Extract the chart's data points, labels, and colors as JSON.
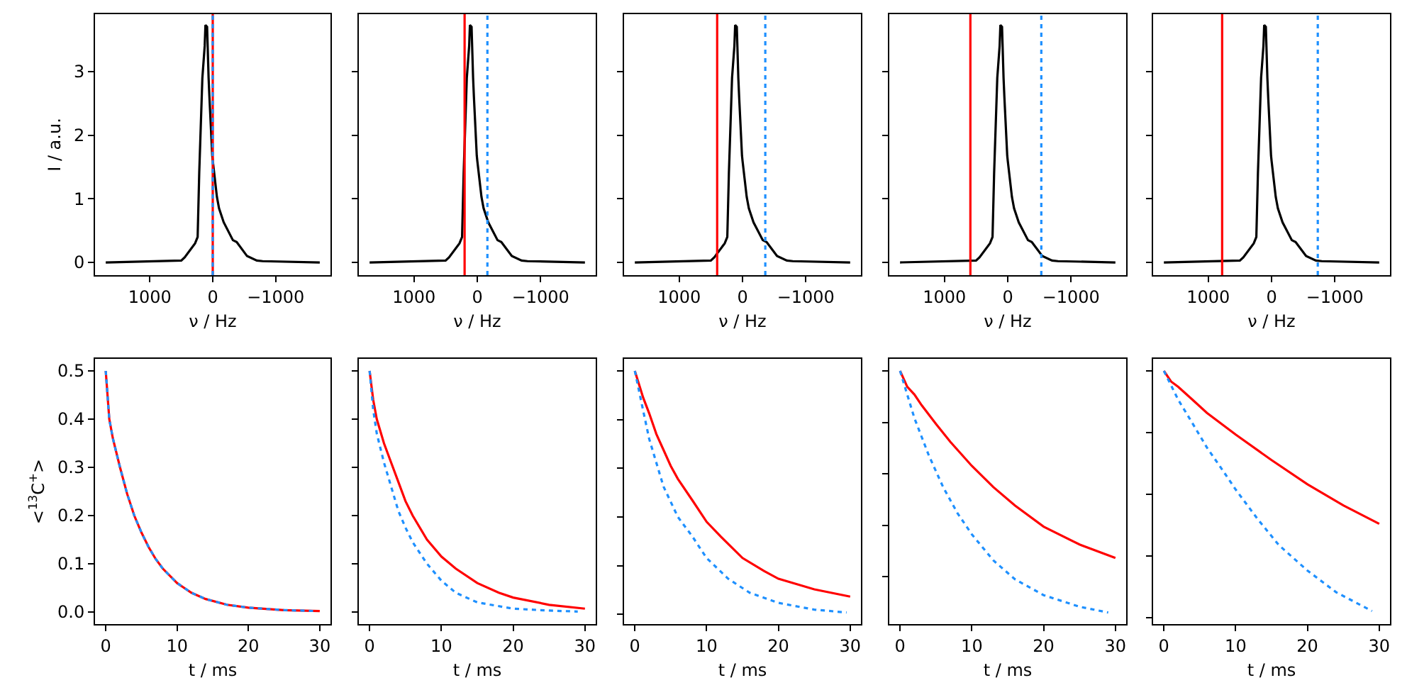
{
  "chart_data": [
    {
      "type": "line",
      "ylabel": "I / a.u.",
      "xlabel": "ν / Hz",
      "xlim": [
        1870,
        -1870
      ],
      "xticks": [
        1000,
        0,
        -1000
      ],
      "ylim": [
        -0.2,
        3.9
      ],
      "yticks": [
        0,
        1,
        2,
        3
      ],
      "series": [
        {
          "color": "#000000",
          "x": [
            1700,
            500,
            446,
            281,
            240,
            215,
            165,
            128,
            116,
            90,
            66,
            53,
            8,
            0,
            -66,
            -100,
            -174,
            -320,
            -380,
            -545,
            -700,
            -793,
            -1700
          ],
          "values": [
            0,
            0.03,
            0.08,
            0.3,
            0.4,
            1.4,
            2.9,
            3.4,
            3.73,
            3.7,
            2.9,
            2.6,
            1.68,
            1.6,
            1.03,
            0.85,
            0.63,
            0.35,
            0.32,
            0.1,
            0.03,
            0.02,
            0
          ]
        }
      ],
      "ref_lines": [
        {
          "axis": "x",
          "value": 0,
          "color": "#ff0000",
          "line_style": "solid"
        },
        {
          "axis": "x",
          "value": 0,
          "color": "#1e90ff",
          "line_style": "dotted"
        }
      ]
    },
    {
      "type": "line",
      "xlabel": "ν / Hz",
      "xlim": [
        1870,
        -1870
      ],
      "xticks": [
        1000,
        0,
        -1000
      ],
      "ylim": [
        -0.2,
        3.9
      ],
      "yticks": [
        0,
        1,
        2,
        3
      ],
      "tick_labels": "x",
      "series": [
        {
          "color": "#000000",
          "x": [
            1700,
            500,
            446,
            281,
            240,
            215,
            165,
            128,
            116,
            90,
            66,
            53,
            8,
            0,
            -66,
            -100,
            -174,
            -320,
            -380,
            -545,
            -700,
            -793,
            -1700
          ],
          "values": [
            0,
            0.03,
            0.08,
            0.3,
            0.4,
            1.4,
            2.9,
            3.4,
            3.73,
            3.7,
            2.9,
            2.6,
            1.68,
            1.6,
            1.03,
            0.85,
            0.63,
            0.35,
            0.32,
            0.1,
            0.03,
            0.02,
            0
          ]
        }
      ],
      "ref_lines": [
        {
          "axis": "x",
          "value": 200,
          "color": "#ff0000",
          "line_style": "solid"
        },
        {
          "axis": "x",
          "value": -160,
          "color": "#1e90ff",
          "line_style": "dotted"
        }
      ]
    },
    {
      "type": "line",
      "xlabel": "ν / Hz",
      "xlim": [
        1870,
        -1870
      ],
      "xticks": [
        1000,
        0,
        -1000
      ],
      "ylim": [
        -0.2,
        3.9
      ],
      "yticks": [
        0,
        1,
        2,
        3
      ],
      "tick_labels": "x",
      "series": [
        {
          "color": "#000000",
          "x": [
            1700,
            500,
            446,
            281,
            240,
            215,
            165,
            128,
            116,
            90,
            66,
            53,
            8,
            0,
            -66,
            -100,
            -174,
            -320,
            -380,
            -545,
            -700,
            -793,
            -1700
          ],
          "values": [
            0,
            0.03,
            0.08,
            0.3,
            0.4,
            1.4,
            2.9,
            3.4,
            3.73,
            3.7,
            2.9,
            2.6,
            1.68,
            1.6,
            1.03,
            0.85,
            0.63,
            0.35,
            0.32,
            0.1,
            0.03,
            0.02,
            0
          ]
        }
      ],
      "ref_lines": [
        {
          "axis": "x",
          "value": 400,
          "color": "#ff0000",
          "line_style": "solid"
        },
        {
          "axis": "x",
          "value": -360,
          "color": "#1e90ff",
          "line_style": "dotted"
        }
      ]
    },
    {
      "type": "line",
      "xlabel": "ν / Hz",
      "xlim": [
        1870,
        -1870
      ],
      "xticks": [
        1000,
        0,
        -1000
      ],
      "ylim": [
        -0.2,
        3.9
      ],
      "yticks": [
        0,
        1,
        2,
        3
      ],
      "tick_labels": "x",
      "series": [
        {
          "color": "#000000",
          "x": [
            1700,
            500,
            446,
            281,
            240,
            215,
            165,
            128,
            116,
            90,
            66,
            53,
            8,
            0,
            -66,
            -100,
            -174,
            -320,
            -380,
            -545,
            -700,
            -793,
            -1700
          ],
          "values": [
            0,
            0.03,
            0.08,
            0.3,
            0.4,
            1.4,
            2.9,
            3.4,
            3.73,
            3.7,
            2.9,
            2.6,
            1.68,
            1.6,
            1.03,
            0.85,
            0.63,
            0.35,
            0.32,
            0.1,
            0.03,
            0.02,
            0
          ]
        }
      ],
      "ref_lines": [
        {
          "axis": "x",
          "value": 590,
          "color": "#ff0000",
          "line_style": "solid"
        },
        {
          "axis": "x",
          "value": -530,
          "color": "#1e90ff",
          "line_style": "dotted"
        }
      ]
    },
    {
      "type": "line",
      "xlabel": "ν / Hz",
      "xlim": [
        1870,
        -1870
      ],
      "xticks": [
        1000,
        0,
        -1000
      ],
      "ylim": [
        -0.2,
        3.9
      ],
      "yticks": [
        0,
        1,
        2,
        3
      ],
      "tick_labels": "x",
      "series": [
        {
          "color": "#000000",
          "x": [
            1700,
            500,
            446,
            281,
            240,
            215,
            165,
            128,
            116,
            90,
            66,
            53,
            8,
            0,
            -66,
            -100,
            -174,
            -320,
            -380,
            -545,
            -700,
            -793,
            -1700
          ],
          "values": [
            0,
            0.03,
            0.08,
            0.3,
            0.4,
            1.4,
            2.9,
            3.4,
            3.73,
            3.7,
            2.9,
            2.6,
            1.68,
            1.6,
            1.03,
            0.85,
            0.63,
            0.35,
            0.32,
            0.1,
            0.03,
            0.02,
            0
          ]
        }
      ],
      "ref_lines": [
        {
          "axis": "x",
          "value": 780,
          "color": "#ff0000",
          "line_style": "solid"
        },
        {
          "axis": "x",
          "value": -730,
          "color": "#1e90ff",
          "line_style": "dotted"
        }
      ]
    },
    {
      "type": "line",
      "ylabel": "<$^{13}$C$^{+}$>",
      "xlabel": "t / ms",
      "xlim": [
        -1.5,
        31.5
      ],
      "xticks": [
        0,
        10,
        20,
        30
      ],
      "ylim": [
        -0.025,
        0.525
      ],
      "yticks": [
        {
          "value": 0,
          "label": "0.0"
        },
        0.1,
        0.2,
        0.3,
        0.4,
        0.5
      ],
      "series": [
        {
          "color": "#ff0000",
          "line_style": "solid",
          "x": [
            0,
            0.5,
            1,
            2,
            3,
            4,
            5,
            6,
            7,
            8,
            10,
            12,
            14,
            17,
            20,
            25,
            30
          ],
          "values": [
            0.5,
            0.4,
            0.36,
            0.3,
            0.245,
            0.2,
            0.165,
            0.135,
            0.11,
            0.09,
            0.06,
            0.04,
            0.027,
            0.015,
            0.009,
            0.004,
            0.002
          ]
        },
        {
          "color": "#1e90ff",
          "line_style": "dotted",
          "x": [
            0,
            0.5,
            1,
            2,
            3,
            4,
            5,
            6,
            7,
            8,
            10,
            12,
            14,
            17,
            20,
            25,
            29.5
          ],
          "values": [
            0.5,
            0.4,
            0.36,
            0.3,
            0.245,
            0.2,
            0.165,
            0.135,
            0.11,
            0.09,
            0.06,
            0.04,
            0.027,
            0.015,
            0.009,
            0.004,
            0.002
          ]
        }
      ]
    },
    {
      "type": "line",
      "xlabel": "t / ms",
      "xlim": [
        -1.5,
        31.5
      ],
      "xticks": [
        0,
        10,
        20,
        30
      ],
      "ylim": [
        -0.025,
        0.525
      ],
      "yticks": [
        0,
        0.1,
        0.2,
        0.3,
        0.4,
        0.5
      ],
      "tick_labels": "x",
      "series": [
        {
          "color": "#ff0000",
          "line_style": "solid",
          "x": [
            0,
            0.5,
            1,
            2,
            3,
            4,
            5,
            6,
            8,
            10,
            12,
            15,
            18,
            20,
            25,
            30
          ],
          "values": [
            0.5,
            0.44,
            0.4,
            0.35,
            0.31,
            0.27,
            0.23,
            0.2,
            0.15,
            0.115,
            0.09,
            0.06,
            0.04,
            0.03,
            0.015,
            0.007
          ]
        },
        {
          "color": "#1e90ff",
          "line_style": "dotted",
          "x": [
            0,
            0.5,
            1,
            2,
            3,
            4,
            5,
            6,
            8,
            10,
            12,
            15,
            20,
            25,
            29
          ],
          "values": [
            0.5,
            0.42,
            0.37,
            0.31,
            0.26,
            0.21,
            0.175,
            0.145,
            0.1,
            0.065,
            0.04,
            0.02,
            0.007,
            0.003,
            0.001
          ]
        }
      ]
    },
    {
      "type": "line",
      "xlabel": "t / ms",
      "xlim": [
        -1.5,
        31.5
      ],
      "xticks": [
        0,
        10,
        20,
        30
      ],
      "ylim": [
        -0.025,
        0.525
      ],
      "yticks": [
        {
          "value": -0.005,
          "label": null
        },
        {
          "value": 0.096,
          "label": null
        },
        {
          "value": 0.197,
          "label": null
        },
        {
          "value": 0.298,
          "label": null
        },
        {
          "value": 0.399,
          "label": null
        },
        {
          "value": 0.5,
          "label": null
        }
      ],
      "tick_labels": "x",
      "series": [
        {
          "color": "#ff0000",
          "line_style": "solid",
          "x": [
            0,
            1.15,
            2,
            3,
            4,
            5,
            6,
            8,
            10,
            12,
            15,
            18,
            20,
            25,
            30
          ],
          "values": [
            0.5,
            0.445,
            0.412,
            0.369,
            0.336,
            0.303,
            0.276,
            0.232,
            0.187,
            0.156,
            0.112,
            0.085,
            0.069,
            0.047,
            0.032
          ]
        },
        {
          "color": "#1e90ff",
          "line_style": "dotted",
          "x": [
            0,
            1,
            2,
            4,
            6,
            8,
            10,
            13,
            16,
            20,
            25,
            29.5
          ],
          "values": [
            0.5,
            0.429,
            0.359,
            0.26,
            0.197,
            0.157,
            0.112,
            0.069,
            0.04,
            0.019,
            0.005,
            -0.001
          ]
        }
      ]
    },
    {
      "type": "line",
      "xlabel": "t / ms",
      "xlim": [
        -1.5,
        31.5
      ],
      "xticks": [
        0,
        10,
        20,
        30
      ],
      "ylim": [
        -0.025,
        0.525
      ],
      "yticks": [
        {
          "value": 0.074,
          "label": null
        },
        {
          "value": 0.18,
          "label": null
        },
        {
          "value": 0.287,
          "label": null
        },
        {
          "value": 0.393,
          "label": null
        },
        {
          "value": 0.5,
          "label": null
        }
      ],
      "tick_labels": "x",
      "series": [
        {
          "color": "#ff0000",
          "line_style": "solid",
          "x": [
            0,
            1,
            2,
            3,
            5,
            7,
            10,
            13,
            16,
            20,
            25,
            30
          ],
          "values": [
            0.5,
            0.467,
            0.451,
            0.429,
            0.39,
            0.353,
            0.303,
            0.259,
            0.221,
            0.177,
            0.14,
            0.112
          ]
        },
        {
          "color": "#1e90ff",
          "line_style": "dotted",
          "x": [
            0,
            2,
            4,
            6,
            8,
            10,
            13,
            16,
            20,
            25,
            29
          ],
          "values": [
            0.5,
            0.402,
            0.325,
            0.259,
            0.205,
            0.161,
            0.107,
            0.068,
            0.035,
            0.011,
            -0.001
          ]
        }
      ]
    },
    {
      "type": "line",
      "xlabel": "t / ms",
      "xlim": [
        -1.5,
        31.5
      ],
      "xticks": [
        0,
        10,
        20,
        30
      ],
      "ylim": [
        -0.025,
        0.525
      ],
      "yticks": [
        {
          "value": -0.012,
          "label": null
        },
        {
          "value": 0.116,
          "label": null
        },
        {
          "value": 0.244,
          "label": null
        },
        {
          "value": 0.372,
          "label": null
        },
        {
          "value": 0.5,
          "label": null
        }
      ],
      "tick_labels": "x",
      "series": [
        {
          "color": "#ff0000",
          "line_style": "solid",
          "x": [
            0,
            1,
            2,
            4,
            6,
            10,
            15,
            20,
            25,
            30
          ],
          "values": [
            0.5,
            0.478,
            0.467,
            0.44,
            0.413,
            0.368,
            0.315,
            0.265,
            0.221,
            0.183
          ]
        },
        {
          "color": "#1e90ff",
          "line_style": "dotted",
          "x": [
            0,
            2,
            4,
            6,
            8,
            10,
            13,
            16,
            20,
            24,
            29
          ],
          "values": [
            0.5,
            0.44,
            0.391,
            0.341,
            0.298,
            0.254,
            0.194,
            0.139,
            0.086,
            0.041,
            0.002
          ]
        }
      ]
    }
  ]
}
